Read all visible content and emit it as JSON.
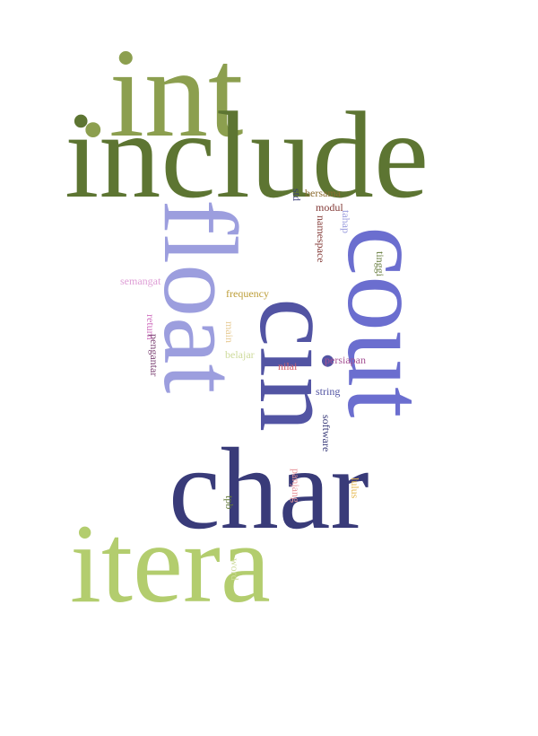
{
  "words": [
    {
      "key": "int",
      "text": ".int",
      "color": "#8c9f4f",
      "orientation": "horizontal"
    },
    {
      "key": "include",
      "text": "include",
      "color": "#5d7532",
      "orientation": "horizontal"
    },
    {
      "key": "itera",
      "text": "itera",
      "color": "#b3cd6e",
      "orientation": "horizontal"
    },
    {
      "key": "char",
      "text": "char",
      "color": "#393b79",
      "orientation": "horizontal"
    },
    {
      "key": "cout",
      "text": "cout",
      "color": "#6b6ecf",
      "orientation": "vertical"
    },
    {
      "key": "cin",
      "text": "cin",
      "color": "#5254a3",
      "orientation": "vertical"
    },
    {
      "key": "float",
      "text": "float",
      "color": "#9c9ede",
      "orientation": "vertical"
    },
    {
      "key": "bersama",
      "text": "bersama",
      "color": "#8c6d31",
      "orientation": "horizontal"
    },
    {
      "key": "modul",
      "text": "modul",
      "color": "#843c39",
      "orientation": "horizontal"
    },
    {
      "key": "std",
      "text": "std",
      "color": "#393b79",
      "orientation": "vertical"
    },
    {
      "key": "tahap",
      "text": "tahap",
      "color": "#9c9ede",
      "orientation": "vertical"
    },
    {
      "key": "namespace",
      "text": "namespace",
      "color": "#843c39",
      "orientation": "vertical"
    },
    {
      "key": "tinggi",
      "text": "tinggi",
      "color": "#637939",
      "orientation": "vertical"
    },
    {
      "key": "semangat",
      "text": "semangat",
      "color": "#de9ed6",
      "orientation": "horizontal"
    },
    {
      "key": "frequency",
      "text": "frequency",
      "color": "#bd9e39",
      "orientation": "horizontal"
    },
    {
      "key": "return",
      "text": "return",
      "color": "#ce6dbd",
      "orientation": "vertical"
    },
    {
      "key": "pengantar",
      "text": "pengantar",
      "color": "#7b4173",
      "orientation": "vertical"
    },
    {
      "key": "main",
      "text": "main",
      "color": "#e7cb94",
      "orientation": "vertical"
    },
    {
      "key": "belajar",
      "text": "belajar",
      "color": "#cedb9c",
      "orientation": "horizontal"
    },
    {
      "key": "nilai",
      "text": "nilai",
      "color": "#d6616b",
      "orientation": "horizontal"
    },
    {
      "key": "persiapan",
      "text": "persiapan",
      "color": "#a55194",
      "orientation": "horizontal"
    },
    {
      "key": "string",
      "text": "string",
      "color": "#5254a3",
      "orientation": "horizontal"
    },
    {
      "key": "software",
      "text": "software",
      "color": "#393b79",
      "orientation": "vertical"
    },
    {
      "key": "lulus",
      "text": "lulus",
      "color": "#e7ba52",
      "orientation": "vertical"
    },
    {
      "key": "panjang",
      "text": "panjang",
      "color": "#e7969c",
      "orientation": "vertical"
    },
    {
      "key": "tpb",
      "text": "tpb",
      "color": "#637939",
      "orientation": "vertical"
    },
    {
      "key": "word",
      "text": "word",
      "color": "#cedb9c",
      "orientation": "vertical"
    }
  ]
}
